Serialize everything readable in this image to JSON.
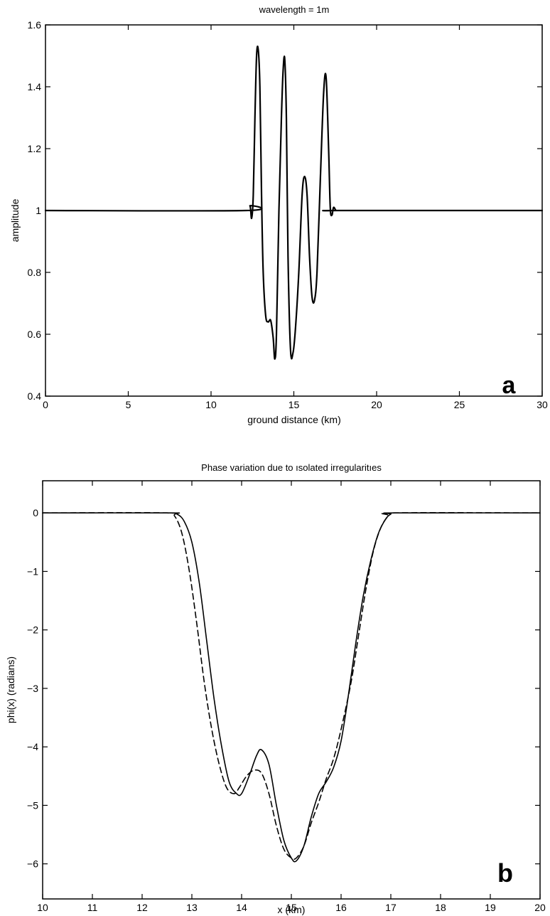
{
  "chart_data": [
    {
      "type": "line",
      "panel_label": "a",
      "title": "wavelength = 1m",
      "xlabel": "ground distance (km)",
      "ylabel": "amplitude",
      "xlim": [
        0,
        30
      ],
      "ylim": [
        0.4,
        1.6
      ],
      "xticks": [
        0,
        5,
        10,
        15,
        20,
        25,
        30
      ],
      "xtick_labels": [
        "0",
        "5",
        "10",
        "15",
        "20",
        "25",
        "30"
      ],
      "yticks": [
        0.4,
        0.6,
        0.8,
        1.0,
        1.2,
        1.4,
        1.6
      ],
      "ytick_labels": [
        "0.4",
        "0.6",
        "0.8",
        "1",
        "1.2",
        "1.4",
        "1.6"
      ],
      "grid": false,
      "series": [
        {
          "style": "solid",
          "color": "#000000",
          "x": [
            0,
            12.1,
            12.35,
            12.45,
            12.55,
            12.65,
            12.75,
            12.85,
            12.95,
            13.05,
            13.15,
            13.3,
            13.45,
            13.6,
            13.75,
            13.85,
            13.95,
            14.1,
            14.25,
            14.35,
            14.45,
            14.55,
            14.65,
            14.8,
            14.95,
            15.1,
            15.3,
            15.5,
            15.65,
            15.8,
            15.95,
            16.1,
            16.25,
            16.4,
            16.6,
            16.8,
            16.95,
            17.1,
            17.2,
            17.3,
            17.4,
            17.55,
            17.7,
            30
          ],
          "y": [
            1.0,
            1.0,
            1.015,
            0.975,
            1.05,
            1.3,
            1.5,
            1.52,
            1.4,
            1.05,
            0.8,
            0.66,
            0.64,
            0.645,
            0.59,
            0.52,
            0.6,
            1.0,
            1.3,
            1.45,
            1.49,
            1.3,
            0.85,
            0.55,
            0.54,
            0.62,
            0.8,
            1.05,
            1.11,
            1.05,
            0.85,
            0.72,
            0.71,
            0.8,
            1.1,
            1.38,
            1.43,
            1.2,
            1.01,
            0.985,
            1.01,
            1.0,
            1.0,
            1.0
          ]
        }
      ]
    },
    {
      "type": "line",
      "panel_label": "b",
      "title": "Phase variation due to ısolated irregularitıes",
      "xlabel": "x (km)",
      "ylabel": "phi(x) (radians)",
      "xlim": [
        10,
        20
      ],
      "ylim": [
        -6.6,
        0.55
      ],
      "xticks": [
        10,
        11,
        12,
        13,
        14,
        15,
        16,
        17,
        18,
        19,
        20
      ],
      "xtick_labels": [
        "10",
        "11",
        "12",
        "13",
        "14",
        "15",
        "16",
        "17",
        "18",
        "19",
        "20"
      ],
      "yticks": [
        0,
        -1,
        -2,
        -3,
        -4,
        -5,
        -6
      ],
      "ytick_labels": [
        "0",
        "−1",
        "−2",
        "−3",
        "−4",
        "−5",
        "−6"
      ],
      "grid": false,
      "series": [
        {
          "style": "solid",
          "color": "#000000",
          "x": [
            10,
            12.5,
            12.7,
            12.85,
            13.0,
            13.15,
            13.3,
            13.45,
            13.6,
            13.75,
            13.9,
            14.0,
            14.15,
            14.3,
            14.4,
            14.55,
            14.7,
            14.85,
            15.0,
            15.1,
            15.25,
            15.4,
            15.55,
            15.7,
            15.85,
            16.0,
            16.15,
            16.3,
            16.45,
            16.6,
            16.75,
            16.9,
            17.0,
            17.1,
            20
          ],
          "y": [
            0,
            0,
            -0.02,
            -0.15,
            -0.5,
            -1.2,
            -2.2,
            -3.2,
            -4.0,
            -4.6,
            -4.8,
            -4.8,
            -4.5,
            -4.15,
            -4.05,
            -4.3,
            -5.0,
            -5.6,
            -5.9,
            -5.95,
            -5.7,
            -5.2,
            -4.8,
            -4.6,
            -4.35,
            -3.9,
            -3.1,
            -2.2,
            -1.4,
            -0.8,
            -0.35,
            -0.1,
            -0.02,
            0,
            0
          ]
        },
        {
          "style": "dashed",
          "color": "#000000",
          "x": [
            10,
            12.5,
            12.65,
            12.8,
            12.95,
            13.1,
            13.25,
            13.4,
            13.55,
            13.7,
            13.85,
            13.95,
            14.1,
            14.25,
            14.4,
            14.55,
            14.7,
            14.85,
            15.0,
            15.1,
            15.25,
            15.4,
            15.55,
            15.7,
            15.85,
            16.0,
            16.2,
            16.35,
            16.5,
            16.65,
            16.8,
            16.95,
            17.05,
            20
          ],
          "y": [
            0,
            0,
            -0.05,
            -0.35,
            -1.0,
            -1.9,
            -2.9,
            -3.7,
            -4.3,
            -4.7,
            -4.8,
            -4.7,
            -4.5,
            -4.4,
            -4.45,
            -4.8,
            -5.35,
            -5.75,
            -5.9,
            -5.9,
            -5.7,
            -5.3,
            -4.95,
            -4.55,
            -4.2,
            -3.7,
            -2.9,
            -2.1,
            -1.3,
            -0.65,
            -0.25,
            -0.05,
            0,
            0
          ]
        }
      ]
    }
  ]
}
